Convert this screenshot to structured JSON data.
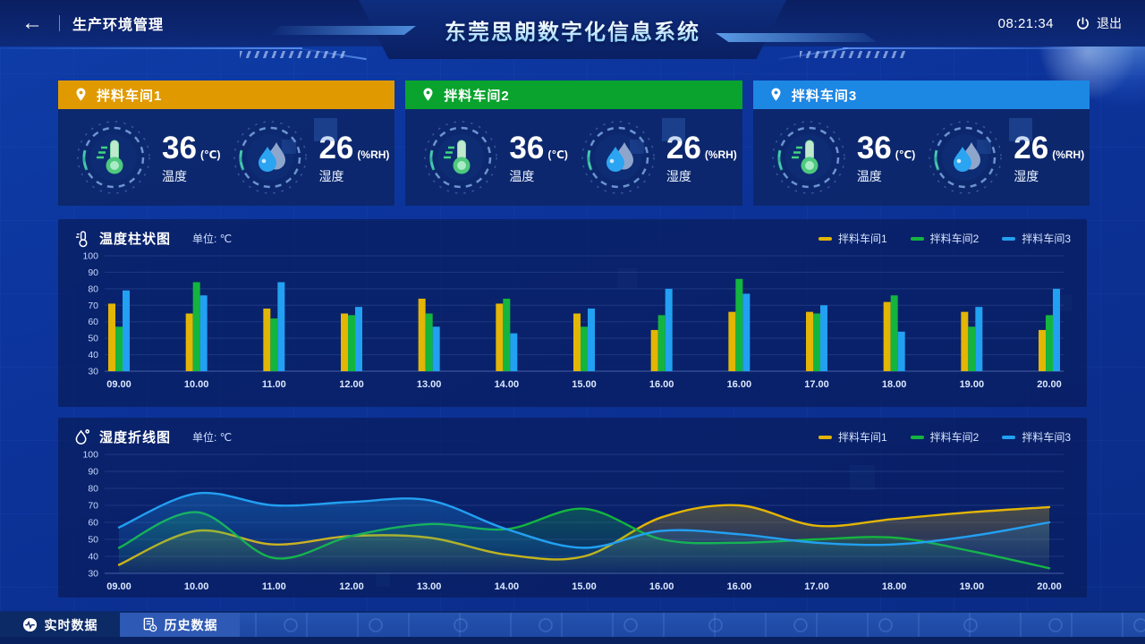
{
  "header": {
    "back_icon": "←",
    "breadcrumb": "生产环境管理",
    "title": "东莞思朗数字化信息系统",
    "time": "08:21:34",
    "logout_label": "退出"
  },
  "cards": [
    {
      "name": "拌料车间1",
      "header_color": "#e09a00",
      "temp_value": "36",
      "temp_unit": "(℃)",
      "temp_label": "温度",
      "hum_value": "26",
      "hum_unit": "(%RH)",
      "hum_label": "湿度"
    },
    {
      "name": "拌料车间2",
      "header_color": "#09a32e",
      "temp_value": "36",
      "temp_unit": "(℃)",
      "temp_label": "温度",
      "hum_value": "26",
      "hum_unit": "(%RH)",
      "hum_label": "湿度"
    },
    {
      "name": "拌料车间3",
      "header_color": "#1d87e4",
      "temp_value": "36",
      "temp_unit": "(℃)",
      "temp_label": "温度",
      "hum_value": "26",
      "hum_unit": "(%RH)",
      "hum_label": "湿度"
    }
  ],
  "chart_data": [
    {
      "type": "bar",
      "title": "温度柱状图",
      "unit_label": "单位: ℃",
      "categories": [
        "09.00",
        "10.00",
        "11.00",
        "12.00",
        "13.00",
        "14.00",
        "15.00",
        "16.00",
        "16.00",
        "17.00",
        "18.00",
        "19.00",
        "20.00"
      ],
      "ylim": [
        30,
        100
      ],
      "ystep": 10,
      "grid": true,
      "legend_position": "top-right",
      "series": [
        {
          "name": "拌料车间1",
          "color": "#e3b505",
          "values": [
            71,
            65,
            68,
            65,
            74,
            71,
            65,
            55,
            66,
            66,
            72,
            66,
            55
          ]
        },
        {
          "name": "拌料车间2",
          "color": "#14b53e",
          "values": [
            57,
            84,
            62,
            64,
            65,
            74,
            57,
            64,
            86,
            65,
            76,
            57,
            64
          ]
        },
        {
          "name": "拌料车间3",
          "color": "#22a0f2",
          "values": [
            79,
            76,
            84,
            69,
            57,
            53,
            68,
            80,
            77,
            70,
            54,
            69,
            80
          ]
        }
      ]
    },
    {
      "type": "line",
      "title": "湿度折线图",
      "unit_label": "单位: ℃",
      "categories": [
        "09.00",
        "10.00",
        "11.00",
        "12.00",
        "13.00",
        "14.00",
        "15.00",
        "16.00",
        "16.00",
        "17.00",
        "18.00",
        "19.00",
        "20.00"
      ],
      "ylim": [
        30,
        100
      ],
      "ystep": 10,
      "grid": true,
      "legend_position": "top-right",
      "series": [
        {
          "name": "拌料车间1",
          "color": "#e3b505",
          "values": [
            35,
            55,
            47,
            52,
            51,
            41,
            40,
            63,
            70,
            58,
            62,
            66,
            69
          ]
        },
        {
          "name": "拌料车间2",
          "color": "#14b53e",
          "values": [
            45,
            66,
            39,
            52,
            59,
            56,
            68,
            50,
            48,
            50,
            51,
            43,
            33
          ]
        },
        {
          "name": "拌料车间3",
          "color": "#22a0f2",
          "values": [
            57,
            77,
            70,
            72,
            73,
            56,
            45,
            55,
            53,
            48,
            47,
            52,
            60
          ]
        }
      ]
    }
  ],
  "footer": {
    "tabs": [
      {
        "label": "实时数据",
        "active": true
      },
      {
        "label": "历史数据",
        "active": false
      }
    ]
  }
}
